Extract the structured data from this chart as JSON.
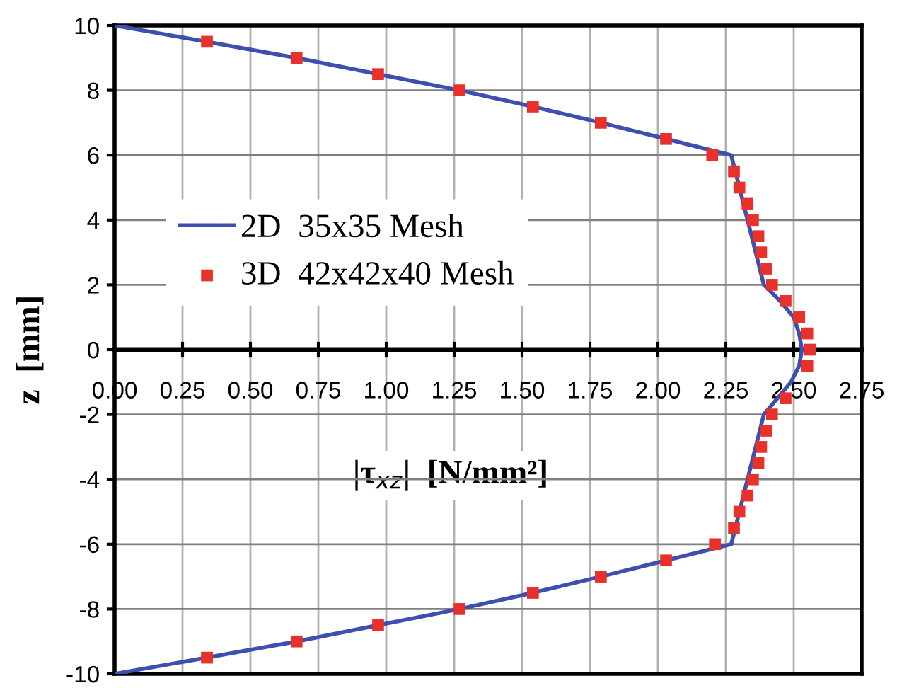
{
  "chart_data": {
    "type": "line",
    "xlabel": "|τ$_{xz}$|  [N/mm²]",
    "ylabel": "z  [mm]",
    "xlim": [
      0,
      2.75
    ],
    "xticks": [
      {
        "value": 0,
        "label": "0.00"
      },
      {
        "value": 0.25,
        "label": "0.25"
      },
      {
        "value": 0.5,
        "label": "0.50"
      },
      {
        "value": 0.75,
        "label": "0.75"
      },
      {
        "value": 1,
        "label": "1.00"
      },
      {
        "value": 1.25,
        "label": "1.25"
      },
      {
        "value": 1.5,
        "label": "1.50"
      },
      {
        "value": 1.75,
        "label": "1.75"
      },
      {
        "value": 2,
        "label": "2.00"
      },
      {
        "value": 2.25,
        "label": "2.25"
      },
      {
        "value": 2.5,
        "label": "2.50"
      },
      {
        "value": 2.75,
        "label": "2.75"
      }
    ],
    "ylim": [
      -10,
      10
    ],
    "yticks": [
      -10,
      -8,
      -6,
      -4,
      -2,
      0,
      2,
      4,
      6,
      8,
      10
    ],
    "grid": true,
    "legend": "left",
    "series": [
      {
        "name": "2D  35x35 Mesh",
        "color": "#3f4fb0",
        "marker": "none",
        "x": [
          0,
          0.34,
          0.67,
          0.97,
          1.27,
          1.54,
          1.79,
          2.03,
          2.27,
          2.39,
          2.45,
          2.5,
          2.52,
          2.53,
          2.52,
          2.49,
          2.44,
          2.39,
          2.27,
          2.03,
          1.79,
          1.54,
          1.27,
          0.97,
          0.67,
          0.34,
          0
        ],
        "values": [
          10,
          9.5,
          9,
          8.5,
          8,
          7.5,
          7,
          6.5,
          6,
          2,
          1.5,
          1,
          0.5,
          0,
          -0.5,
          -1,
          -1.5,
          -2,
          -6,
          -6.5,
          -7,
          -7.5,
          -8,
          -8.5,
          -9,
          -9.5,
          -10
        ]
      },
      {
        "name": "3D  42x42x40 Mesh",
        "type": "scatter",
        "color": "#e8312a",
        "marker": "square",
        "x": [
          0.34,
          0.67,
          0.97,
          1.27,
          1.54,
          1.79,
          2.03,
          2.2,
          2.28,
          2.3,
          2.33,
          2.35,
          2.37,
          2.38,
          2.4,
          2.42,
          2.47,
          2.52,
          2.55,
          2.56,
          2.55,
          2.47,
          2.42,
          2.4,
          2.38,
          2.37,
          2.35,
          2.33,
          2.3,
          2.28,
          2.21,
          2.03,
          1.79,
          1.54,
          1.27,
          0.97,
          0.67,
          0.34
        ],
        "values": [
          9.5,
          9,
          8.5,
          8,
          7.5,
          7,
          6.5,
          6,
          5.5,
          5,
          4.5,
          4,
          3.5,
          3,
          2.5,
          2,
          1.5,
          1,
          0.5,
          0,
          -0.5,
          -1.5,
          -2,
          -2.5,
          -3,
          -3.5,
          -4,
          -4.5,
          -5,
          -5.5,
          -6,
          -6.5,
          -7,
          -7.5,
          -8,
          -8.5,
          -9,
          -9.5
        ]
      }
    ]
  }
}
